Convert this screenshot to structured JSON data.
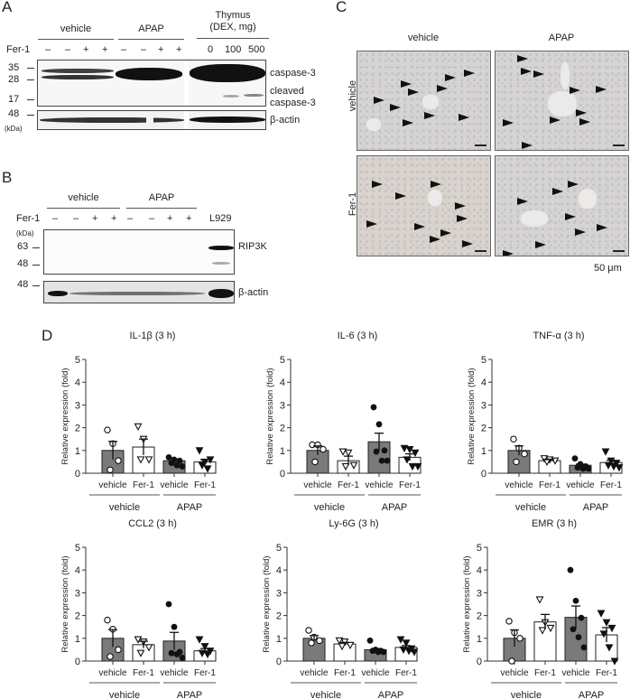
{
  "panels": {
    "A": {
      "letter": "A",
      "groups": [
        "vehicle",
        "APAP"
      ],
      "thymus_label_line1": "Thymus",
      "thymus_label_line2": "(DEX, mg)",
      "fer1_label": "Fer-1",
      "lane_signs": [
        "–",
        "–",
        "+",
        "+",
        "–",
        "–",
        "+",
        "+"
      ],
      "dex_doses": [
        "0",
        "100",
        "500"
      ],
      "mw_markers": [
        "35",
        "28",
        "17",
        "48"
      ],
      "kda_label": "(kDa)",
      "band_labels": {
        "caspase3": "caspase-3",
        "cleaved_line1": "cleaved",
        "cleaved_line2": "caspase-3",
        "actin": "β-actin"
      }
    },
    "B": {
      "letter": "B",
      "groups": [
        "vehicle",
        "APAP"
      ],
      "fer1_label": "Fer-1",
      "lane_signs": [
        "–",
        "–",
        "+",
        "+",
        "–",
        "–",
        "+",
        "+"
      ],
      "control_lane": "L929",
      "kda_label": "(kDa)",
      "mw_markers": [
        "63",
        "48",
        "48"
      ],
      "band_labels": {
        "rip3k": "RIP3K",
        "actin": "β-actin"
      }
    },
    "C": {
      "letter": "C",
      "col_labels": [
        "vehicle",
        "APAP"
      ],
      "row_labels": [
        "vehicle",
        "Fer-1"
      ],
      "scale_label": "50 μm"
    },
    "D": {
      "letter": "D",
      "xgroup_labels": [
        "vehicle",
        "APAP"
      ],
      "bar_labels": [
        "vehicle",
        "Fer-1",
        "vehicle",
        "Fer-1"
      ],
      "ylabel": "Relative expression (fold)",
      "yticks": [
        "0",
        "1",
        "2",
        "3",
        "4",
        "5"
      ]
    }
  },
  "colors": {
    "bar_vehicle": "#7a7a7a",
    "bar_fer1": "#ffffff",
    "axis": "#333333",
    "band": "#111111"
  },
  "chart_data": [
    {
      "type": "bar",
      "title": "IL-1β (3 h)",
      "ylabel": "Relative expression (fold)",
      "ylim": [
        0,
        5
      ],
      "categories": [
        "vehicle/vehicle",
        "vehicle/Fer-1",
        "APAP/vehicle",
        "APAP/Fer-1"
      ],
      "values": [
        1.0,
        1.15,
        0.55,
        0.5
      ],
      "sem": [
        0.4,
        0.35,
        0.07,
        0.1
      ],
      "points": [
        [
          1.9,
          1.3,
          0.55,
          0.15
        ],
        [
          2.05,
          1.5,
          0.6,
          0.6
        ],
        [
          0.7,
          0.6,
          0.55,
          0.45,
          0.35,
          0.3
        ],
        [
          1.0,
          0.5,
          0.6,
          0.35,
          0.2
        ]
      ]
    },
    {
      "type": "bar",
      "title": "IL-6 (3 h)",
      "ylabel": "Relative expression (fold)",
      "ylim": [
        0,
        5
      ],
      "categories": [
        "vehicle/vehicle",
        "vehicle/Fer-1",
        "APAP/vehicle",
        "APAP/Fer-1"
      ],
      "values": [
        1.0,
        0.55,
        1.38,
        0.7
      ],
      "sem": [
        0.2,
        0.2,
        0.38,
        0.15
      ],
      "points": [
        [
          1.25,
          1.25,
          1.05,
          0.5
        ],
        [
          0.95,
          0.9,
          0.35,
          0.3
        ],
        [
          2.9,
          2.15,
          1.0,
          0.95,
          0.55,
          0.55
        ],
        [
          1.1,
          1.05,
          0.9,
          0.6,
          0.3,
          0.3
        ]
      ]
    },
    {
      "type": "bar",
      "title": "TNF-α (3 h)",
      "ylabel": "Relative expression (fold)",
      "ylim": [
        0,
        5
      ],
      "categories": [
        "vehicle/vehicle",
        "vehicle/Fer-1",
        "APAP/vehicle",
        "APAP/Fer-1"
      ],
      "values": [
        1.0,
        0.55,
        0.35,
        0.47
      ],
      "sem": [
        0.2,
        0.05,
        0.05,
        0.1
      ],
      "points": [
        [
          1.5,
          1.1,
          0.85,
          0.5
        ],
        [
          0.65,
          0.6,
          0.55,
          0.5
        ],
        [
          0.65,
          0.4,
          0.3,
          0.25,
          0.2,
          0.2
        ],
        [
          0.95,
          0.55,
          0.45,
          0.35,
          0.3,
          0.25
        ]
      ]
    },
    {
      "type": "bar",
      "title": "CCL2 (3 h)",
      "ylabel": "Relative expression (fold)",
      "ylim": [
        0,
        5
      ],
      "categories": [
        "vehicle/vehicle",
        "vehicle/Fer-1",
        "APAP/vehicle",
        "APAP/Fer-1"
      ],
      "values": [
        1.0,
        0.72,
        0.88,
        0.45
      ],
      "sem": [
        0.38,
        0.15,
        0.38,
        0.1
      ],
      "points": [
        [
          1.8,
          1.4,
          0.5,
          0.2
        ],
        [
          0.95,
          0.85,
          0.6,
          0.35
        ],
        [
          2.5,
          1.5,
          0.4,
          0.35,
          0.3,
          0.15
        ],
        [
          0.95,
          0.65,
          0.45,
          0.35,
          0.3
        ]
      ]
    },
    {
      "type": "bar",
      "title": "Ly-6G (3 h)",
      "ylabel": "Relative expression (fold)",
      "ylim": [
        0,
        5
      ],
      "categories": [
        "vehicle/vehicle",
        "vehicle/Fer-1",
        "APAP/vehicle",
        "APAP/Fer-1"
      ],
      "values": [
        1.0,
        0.75,
        0.5,
        0.6
      ],
      "sem": [
        0.12,
        0.07,
        0.05,
        0.08
      ],
      "points": [
        [
          1.35,
          1.05,
          0.9,
          0.8
        ],
        [
          0.9,
          0.85,
          0.7,
          0.65
        ],
        [
          0.9,
          0.5,
          0.45,
          0.45,
          0.4,
          0.4
        ],
        [
          0.95,
          0.8,
          0.55,
          0.5,
          0.45,
          0.4
        ]
      ]
    },
    {
      "type": "bar",
      "title": "EMR (3 h)",
      "ylabel": "Relative expression (fold)",
      "ylim": [
        0,
        5
      ],
      "categories": [
        "vehicle/vehicle",
        "vehicle/Fer-1",
        "APAP/vehicle",
        "APAP/Fer-1"
      ],
      "values": [
        1.0,
        1.72,
        1.92,
        1.15
      ],
      "sem": [
        0.37,
        0.33,
        0.5,
        0.32
      ],
      "points": [
        [
          1.75,
          1.25,
          1.0,
          0.0
        ],
        [
          2.7,
          1.7,
          1.45,
          1.35
        ],
        [
          4.0,
          2.65,
          1.9,
          1.4,
          1.05,
          0.6
        ],
        [
          2.1,
          1.7,
          1.45,
          1.2,
          0.6,
          0.0
        ]
      ]
    }
  ]
}
